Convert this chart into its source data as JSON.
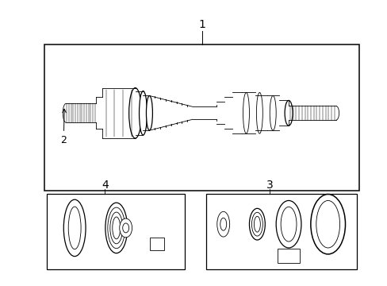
{
  "bg_color": "#ffffff",
  "line_color": "#000000",
  "fig_width": 4.89,
  "fig_height": 3.6,
  "dpi": 100,
  "label1_text": "1",
  "label2_text": "2",
  "label3_text": "3",
  "label4_text": "4"
}
